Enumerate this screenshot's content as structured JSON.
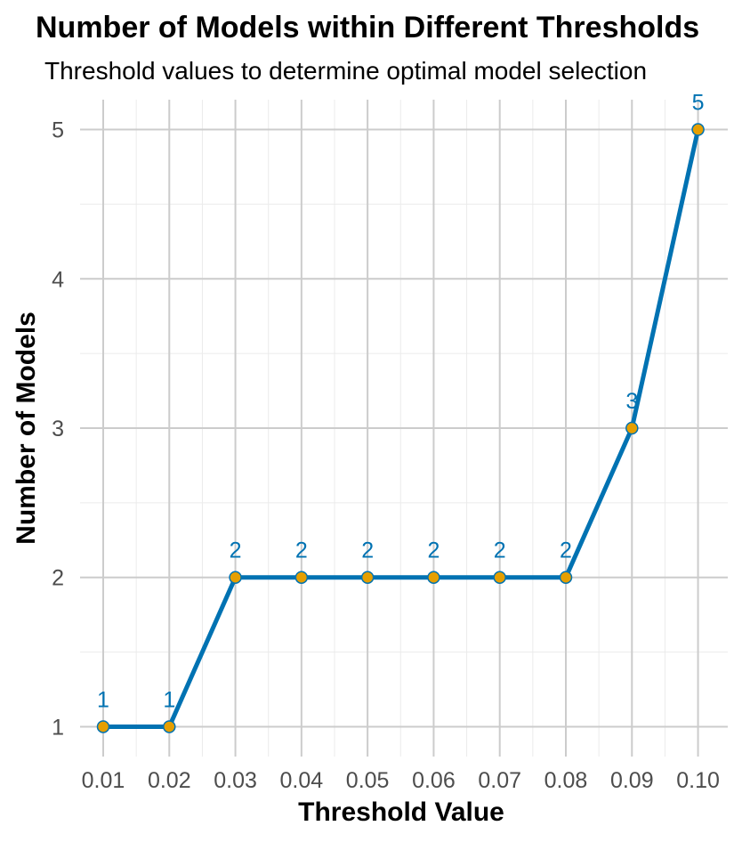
{
  "chart_data": {
    "type": "line",
    "title": "Number of Models within Different Thresholds",
    "subtitle": "Threshold values to determine optimal model selection",
    "xlabel": "Threshold Value",
    "ylabel": "Number of Models",
    "x": [
      0.01,
      0.02,
      0.03,
      0.04,
      0.05,
      0.06,
      0.07,
      0.08,
      0.09,
      0.1
    ],
    "x_tick_labels": [
      "0.01",
      "0.02",
      "0.03",
      "0.04",
      "0.05",
      "0.06",
      "0.07",
      "0.08",
      "0.09",
      "0.10"
    ],
    "values": [
      1,
      1,
      2,
      2,
      2,
      2,
      2,
      2,
      3,
      5
    ],
    "data_labels": [
      "1",
      "1",
      "2",
      "2",
      "2",
      "2",
      "2",
      "2",
      "3",
      "5"
    ],
    "y_ticks": [
      1,
      2,
      3,
      4,
      5
    ],
    "y_tick_labels": [
      "1",
      "2",
      "3",
      "4",
      "5"
    ],
    "xlim": [
      0.0065,
      0.1045
    ],
    "ylim": [
      0.8,
      5.2
    ],
    "grid": true,
    "colors": {
      "line": "#0072B2",
      "marker_fill": "#E69F00",
      "marker_edge": "#0072B2",
      "label": "#0072B2"
    }
  }
}
